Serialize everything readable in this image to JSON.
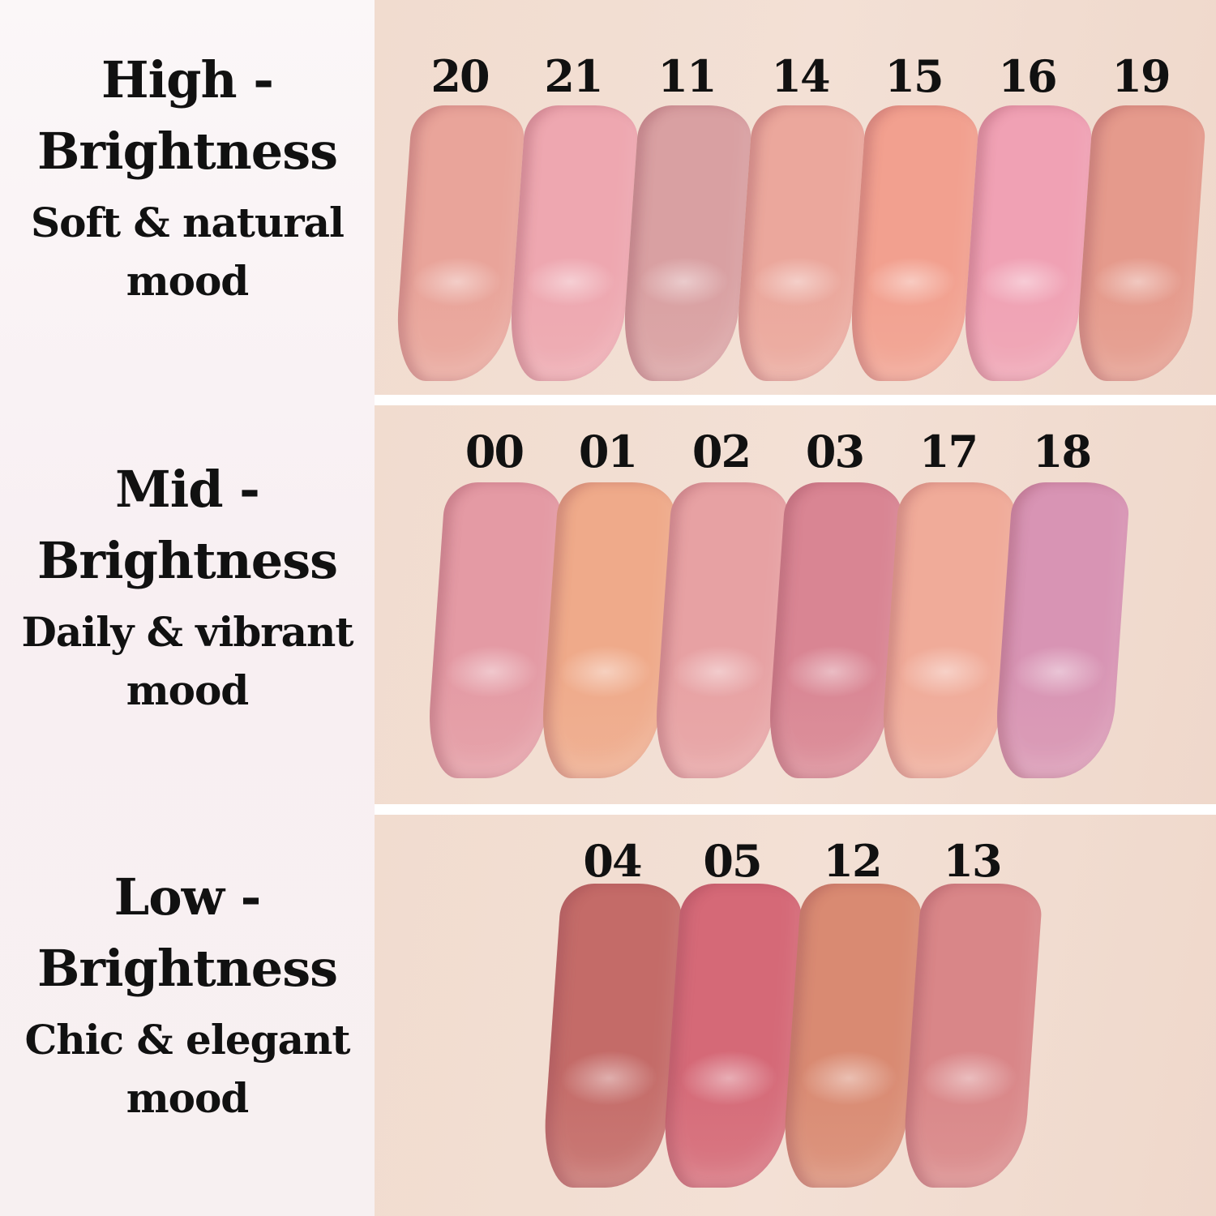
{
  "groups": [
    {
      "title_line1": "High -",
      "title_line2": "Brightness",
      "subtitle": "Soft & natural mood",
      "swatches": [
        {
          "shade": "20",
          "color": "#e9a49a"
        },
        {
          "shade": "21",
          "color": "#eea7b0"
        },
        {
          "shade": "11",
          "color": "#d9a0a2"
        },
        {
          "shade": "14",
          "color": "#eba79c"
        },
        {
          "shade": "15",
          "color": "#f2a08f"
        },
        {
          "shade": "16",
          "color": "#f0a1b4"
        },
        {
          "shade": "19",
          "color": "#e59a8c"
        }
      ]
    },
    {
      "title_line1": "Mid -",
      "title_line2": "Brightness",
      "subtitle": "Daily & vibrant mood",
      "swatches": [
        {
          "shade": "00",
          "color": "#e49aa4"
        },
        {
          "shade": "01",
          "color": "#efaa8a"
        },
        {
          "shade": "02",
          "color": "#e7a1a3"
        },
        {
          "shade": "03",
          "color": "#d98593"
        },
        {
          "shade": "17",
          "color": "#f0ab99"
        },
        {
          "shade": "18",
          "color": "#d894b4"
        }
      ]
    },
    {
      "title_line1": "Low -",
      "title_line2": "Brightness",
      "subtitle": "Chic & elegant mood",
      "swatches": [
        {
          "shade": "04",
          "color": "#c46b68"
        },
        {
          "shade": "05",
          "color": "#d56977"
        },
        {
          "shade": "12",
          "color": "#d98a72"
        },
        {
          "shade": "13",
          "color": "#d98688"
        }
      ]
    }
  ]
}
